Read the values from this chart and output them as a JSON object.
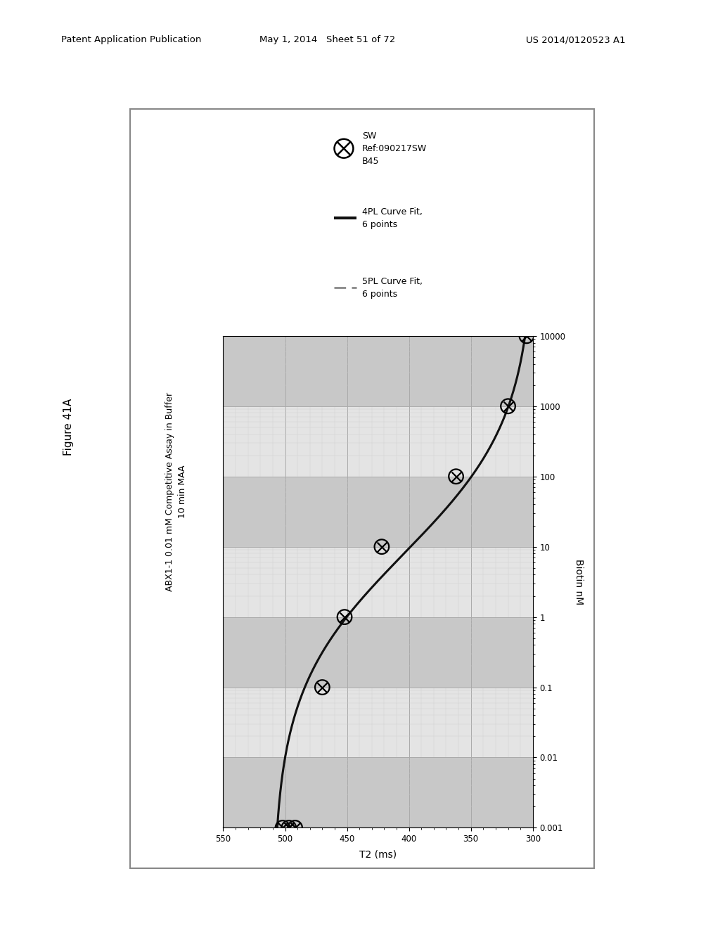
{
  "title_line1": "ABX1-1 0.01 mM Competitive Assay in Buffer",
  "title_line2": "10 min MAA",
  "xlabel_plot": "T2 (ms)",
  "ylabel_plot": "Biotin nM",
  "figure_label": "Figure 41A",
  "header_left": "Patent Application Publication",
  "header_center": "May 1, 2014   Sheet 51 of 72",
  "header_right": "US 2014/0120523 A1",
  "t2_xlim": [
    550,
    300
  ],
  "biotin_ylim_log": [
    -3,
    4
  ],
  "t2_ticks": [
    300,
    350,
    400,
    450,
    500,
    550
  ],
  "biotin_ticks": [
    0.001,
    0.01,
    0.1,
    1,
    10,
    100,
    1000,
    10000
  ],
  "biotin_tick_labels": [
    "0.001",
    "0.01",
    "0.1",
    "1",
    "10",
    "100",
    "1000",
    "10000"
  ],
  "data_biotin": [
    0.001,
    0.001,
    0.001,
    0.1,
    1.0,
    10.0,
    100.0,
    1000.0,
    10000.0
  ],
  "data_t2": [
    502,
    497,
    492,
    470,
    452,
    422,
    362,
    320,
    305
  ],
  "fit_biotin": [
    0.001,
    0.1,
    1.0,
    10.0,
    100.0,
    1000.0,
    10000.0
  ],
  "fit_t2": [
    497,
    470,
    452,
    422,
    362,
    320,
    305
  ],
  "curve_color_4PL": "#111111",
  "curve_color_5PL": "#888888",
  "marker_edgecolor": "#000000",
  "grid_major_color": "#aaaaaa",
  "grid_minor_color": "#cccccc",
  "band_dark_color": "#c8c8c8",
  "band_light_color": "#e4e4e4",
  "plot_bg_color": "#dcdcdc",
  "border_color": "#888888",
  "legend_sw_label": "SW\nRef:090217SW\nB45",
  "legend_4pl_label": "4PL Curve Fit,\n6 points",
  "legend_5pl_label": "5PL Curve Fit,\n6 points"
}
